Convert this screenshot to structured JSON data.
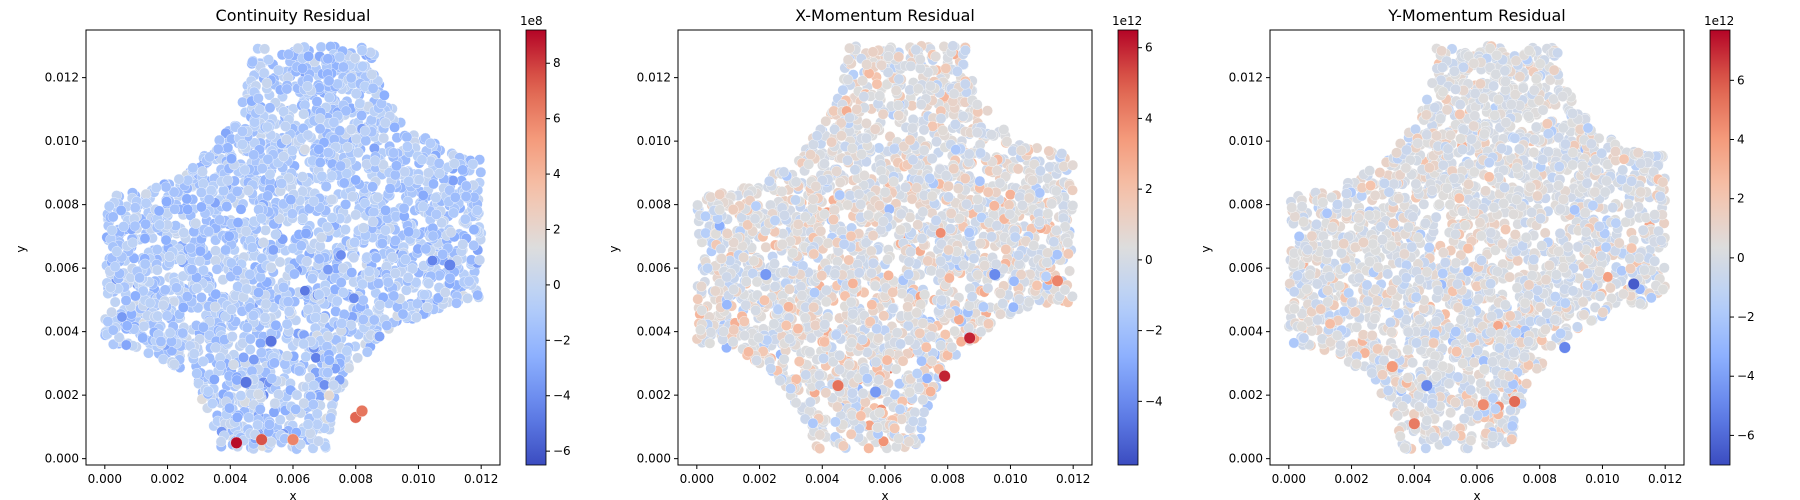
{
  "chart_data": [
    {
      "type": "scatter",
      "title": "Continuity Residual",
      "xlabel": "x",
      "ylabel": "y",
      "xlim": [
        -0.0006,
        0.0126
      ],
      "ylim": [
        -0.0002,
        0.0135
      ],
      "xticks": [
        "0.000",
        "0.002",
        "0.004",
        "0.006",
        "0.008",
        "0.010",
        "0.012"
      ],
      "yticks": [
        "0.000",
        "0.002",
        "0.004",
        "0.006",
        "0.008",
        "0.010",
        "0.012"
      ],
      "colorbar": {
        "label": "Continuity Residual",
        "exponent": "1e8",
        "range": [
          -6.5,
          9.2
        ],
        "ticks": [
          "−6",
          "−4",
          "−2",
          "0",
          "2",
          "4",
          "6",
          "8"
        ],
        "colormap": "coolwarm"
      },
      "domain_outline": "square plate with four concave circular cutouts at the corners",
      "notable_points": [
        {
          "x": 0.0042,
          "y": 0.0005,
          "value": 9.0
        },
        {
          "x": 0.005,
          "y": 0.0006,
          "value": 7.5
        },
        {
          "x": 0.006,
          "y": 0.0006,
          "value": 6.0
        },
        {
          "x": 0.008,
          "y": 0.0013,
          "value": 7.0
        },
        {
          "x": 0.0082,
          "y": 0.0015,
          "value": 6.5
        },
        {
          "x": 0.0053,
          "y": 0.0037,
          "value": -5.0
        },
        {
          "x": 0.0045,
          "y": 0.0024,
          "value": -5.0
        },
        {
          "x": 0.011,
          "y": 0.0061,
          "value": -4.5
        }
      ],
      "bias": {
        "mean": -1.5,
        "spread": 1.3
      }
    },
    {
      "type": "scatter",
      "title": "X-Momentum Residual",
      "xlabel": "x",
      "ylabel": "y",
      "xlim": [
        -0.0006,
        0.0126
      ],
      "ylim": [
        -0.0002,
        0.0135
      ],
      "xticks": [
        "0.000",
        "0.002",
        "0.004",
        "0.006",
        "0.008",
        "0.010",
        "0.012"
      ],
      "yticks": [
        "0.000",
        "0.002",
        "0.004",
        "0.006",
        "0.008",
        "0.010",
        "0.012"
      ],
      "colorbar": {
        "label": "X-Momentum Residual",
        "exponent": "1e12",
        "range": [
          -5.8,
          6.5
        ],
        "ticks": [
          "−4",
          "−2",
          "0",
          "2",
          "4",
          "6"
        ],
        "colormap": "coolwarm"
      },
      "domain_outline": "square plate with four concave circular cutouts at the corners",
      "notable_points": [
        {
          "x": 0.0079,
          "y": 0.0026,
          "value": 6.0
        },
        {
          "x": 0.0087,
          "y": 0.0038,
          "value": 6.0
        },
        {
          "x": 0.0115,
          "y": 0.0056,
          "value": 4.0
        },
        {
          "x": 0.0045,
          "y": 0.0023,
          "value": 4.5
        },
        {
          "x": 0.0095,
          "y": 0.0058,
          "value": -4.0
        },
        {
          "x": 0.0022,
          "y": 0.0058,
          "value": -3.5
        },
        {
          "x": 0.0057,
          "y": 0.0021,
          "value": -3.5
        }
      ],
      "bias": {
        "mean": 0.4,
        "spread": 1.6
      }
    },
    {
      "type": "scatter",
      "title": "Y-Momentum Residual",
      "xlabel": "x",
      "ylabel": "y",
      "xlim": [
        -0.0006,
        0.0126
      ],
      "ylim": [
        -0.0002,
        0.0135
      ],
      "xticks": [
        "0.000",
        "0.002",
        "0.004",
        "0.006",
        "0.008",
        "0.010",
        "0.012"
      ],
      "yticks": [
        "0.000",
        "0.002",
        "0.004",
        "0.006",
        "0.008",
        "0.010",
        "0.012"
      ],
      "colorbar": {
        "label": "Y-Momentum Residual",
        "exponent": "1e12",
        "range": [
          -7.0,
          7.7
        ],
        "ticks": [
          "−6",
          "−4",
          "−2",
          "0",
          "2",
          "4",
          "6"
        ],
        "colormap": "coolwarm"
      },
      "domain_outline": "square plate with four concave circular cutouts at the corners",
      "notable_points": [
        {
          "x": 0.011,
          "y": 0.0055,
          "value": -6.5
        },
        {
          "x": 0.0088,
          "y": 0.0035,
          "value": -5.0
        },
        {
          "x": 0.0044,
          "y": 0.0023,
          "value": -5.0
        },
        {
          "x": 0.0072,
          "y": 0.0018,
          "value": 5.5
        },
        {
          "x": 0.004,
          "y": 0.0011,
          "value": 5.0
        },
        {
          "x": 0.0062,
          "y": 0.0017,
          "value": 4.5
        },
        {
          "x": 0.0033,
          "y": 0.0029,
          "value": 4.0
        }
      ],
      "bias": {
        "mean": 0.2,
        "spread": 1.5
      }
    }
  ]
}
